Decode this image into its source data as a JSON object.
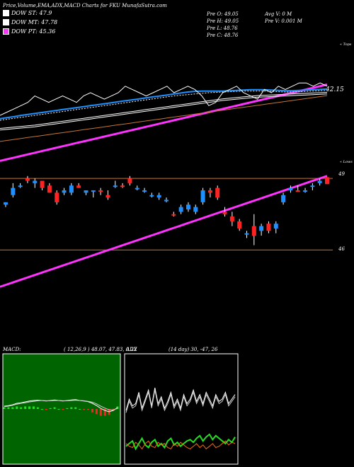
{
  "header": {
    "title": "Price,Volume,EMA,ADX,MACD Charts for FKU MunafaSutra.com",
    "pre_o": "Pre  O: 49.05",
    "pre_h": "Pre  H: 49.05",
    "pre_l": "Pre  L: 48.76",
    "pre_c": "Pre  C: 48.76",
    "avg_v": "Avg V: 0  M",
    "pre_v": "Pre  V: 0.001 M"
  },
  "legend": [
    {
      "label": "DOW ST: 47.9",
      "color": "#ffffff"
    },
    {
      "label": "DOW MT: 47.78",
      "color": "#ffffff"
    },
    {
      "label": "DOW PT: 45.36",
      "color": "#ff33ff"
    }
  ],
  "labels": {
    "tops": "« Tops",
    "lows": "« Lows",
    "ema_value": "42.15",
    "price_49": "49",
    "price_46": "46",
    "macd_title": "MACD:",
    "macd_values": "( 12,26,9 ) 48.07, 47.83,  0.22",
    "adx_title": "ADX",
    "adx_values": "(14  day) 30,  -47,  26"
  },
  "colors": {
    "up": "#1e90ff",
    "down": "#ff2222",
    "ema_short": "#1e90ff",
    "ema_long": "#c87533",
    "pt": "#ff33ff",
    "level": "#c87533",
    "adx_plus": "#22dd22",
    "adx_minus": "#ff6a00"
  },
  "chart_data": [
    {
      "type": "line",
      "title": "EMA",
      "series": [
        {
          "name": "",
          "values": [
            34,
            35,
            36,
            37,
            38,
            40,
            39,
            38,
            39,
            40,
            39,
            38,
            40,
            41,
            40,
            39,
            40,
            41,
            43,
            42,
            41,
            40,
            41,
            42,
            43,
            41,
            42,
            43,
            42,
            40,
            37,
            38,
            41,
            42,
            43,
            41,
            40,
            39,
            42,
            41,
            43,
            42,
            43,
            44,
            44,
            43,
            44,
            43
          ]
        },
        {
          "name": "",
          "values": [
            33,
            33.3,
            33.6,
            34,
            34.3,
            34.6,
            34.9,
            35.2,
            35.5,
            35.8,
            36.1,
            36.4,
            36.7,
            37,
            37.3,
            37.6,
            37.9,
            38.2,
            38.5,
            38.8,
            39.1,
            39.4,
            39.7,
            40,
            40.3,
            40.6,
            40.9,
            41.2,
            41.4,
            41.5,
            41.5,
            41.5,
            41.5,
            41.6,
            41.7,
            41.8,
            41.9,
            41.9,
            41.9,
            41.8,
            41.7,
            41.6,
            41.6,
            41.7,
            41.8,
            41.9,
            42,
            42.15
          ]
        },
        {
          "name": "",
          "values": [
            32.5,
            32.8,
            33.1,
            33.4,
            33.7,
            34,
            34.3,
            34.6,
            34.9,
            35.2,
            35.5,
            35.8,
            36.1,
            36.4,
            36.7,
            37,
            37.3,
            37.6,
            37.9,
            38.2,
            38.5,
            38.8,
            39.1,
            39.4,
            39.7,
            40,
            40.2,
            40.4,
            40.6,
            40.8,
            41,
            41.1,
            41.2,
            41.3,
            41.4,
            41.5,
            41.5,
            41.5,
            41.5,
            41.4,
            41.3,
            41.2,
            41.2,
            41.3,
            41.4,
            41.5,
            41.6,
            41.7
          ]
        },
        {
          "name": "",
          "values": [
            30,
            30.2,
            30.4,
            30.6,
            30.8,
            31,
            31.3,
            31.6,
            31.9,
            32.2,
            32.5,
            32.8,
            33.1,
            33.4,
            33.7,
            34,
            34.3,
            34.6,
            34.9,
            35.2,
            35.5,
            35.8,
            36.1,
            36.4,
            36.7,
            37,
            37.3,
            37.6,
            37.9,
            38.2,
            38.5,
            38.8,
            39.1,
            39.3,
            39.5,
            39.7,
            39.9,
            40.1,
            40.2,
            40.3,
            40.4,
            40.5,
            40.6,
            40.7,
            40.8,
            40.9,
            41,
            41.1
          ]
        },
        {
          "name": "",
          "values": [
            26,
            26.3,
            26.6,
            26.9,
            27.2,
            27.5,
            27.8,
            28.1,
            28.4,
            28.7,
            29,
            29.3,
            29.6,
            29.9,
            30.2,
            30.5,
            30.8,
            31.1,
            31.4,
            31.7,
            32,
            32.3,
            32.6,
            32.9,
            33.2,
            33.5,
            33.8,
            34.1,
            34.4,
            34.7,
            35,
            35.3,
            35.6,
            35.9,
            36.2,
            36.5,
            36.8,
            37.1,
            37.4,
            37.7,
            38,
            38.3,
            38.6,
            38.9,
            39.2,
            39.5,
            39.8,
            40.1
          ]
        },
        {
          "name": "",
          "values": [
            20,
            20.5,
            21,
            21.5,
            22,
            22.5,
            23,
            23.5,
            24,
            24.5,
            25,
            25.5,
            26,
            26.5,
            27,
            27.5,
            28,
            28.5,
            29,
            29.5,
            30,
            30.5,
            31,
            31.5,
            32,
            32.5,
            33,
            33.5,
            34,
            34.5,
            35,
            35.5,
            36,
            36.5,
            37,
            37.5,
            38,
            38.5,
            39,
            39.5,
            40,
            40.5,
            41,
            41.5,
            42,
            42.5,
            43,
            43.5
          ]
        }
      ]
    },
    {
      "type": "bar",
      "title": "Price",
      "ylim": [
        45.8,
        49.3
      ],
      "candles": [
        {
          "o": 47.9,
          "h": 48.0,
          "l": 47.8,
          "c": 48.0,
          "up": true
        },
        {
          "o": 48.3,
          "h": 48.8,
          "l": 48.2,
          "c": 48.6,
          "up": true
        },
        {
          "o": 48.7,
          "h": 48.8,
          "l": 48.6,
          "c": 48.7,
          "up": true
        },
        {
          "o": 49.0,
          "h": 49.1,
          "l": 48.8,
          "c": 48.9,
          "up": false
        },
        {
          "o": 48.8,
          "h": 49.0,
          "l": 48.6,
          "c": 48.9,
          "up": true
        },
        {
          "o": 48.9,
          "h": 48.9,
          "l": 48.5,
          "c": 48.6,
          "up": false
        },
        {
          "o": 48.7,
          "h": 48.8,
          "l": 48.4,
          "c": 48.4,
          "up": false
        },
        {
          "o": 48.4,
          "h": 48.5,
          "l": 47.9,
          "c": 48.0,
          "up": false
        },
        {
          "o": 48.4,
          "h": 48.6,
          "l": 48.3,
          "c": 48.5,
          "up": true
        },
        {
          "o": 48.4,
          "h": 48.8,
          "l": 48.3,
          "c": 48.7,
          "up": true
        },
        {
          "o": 48.7,
          "h": 48.8,
          "l": 48.6,
          "c": 48.6,
          "up": false
        },
        {
          "o": 48.4,
          "h": 48.5,
          "l": 48.3,
          "c": 48.5,
          "up": true
        },
        {
          "o": 48.5,
          "h": 48.5,
          "l": 48.2,
          "c": 48.5,
          "up": true
        },
        {
          "o": 48.5,
          "h": 48.6,
          "l": 48.3,
          "c": 48.5,
          "up": false
        },
        {
          "o": 48.3,
          "h": 48.5,
          "l": 48.1,
          "c": 48.2,
          "up": false
        },
        {
          "o": 48.7,
          "h": 48.9,
          "l": 48.6,
          "c": 48.7,
          "up": true
        },
        {
          "o": 48.7,
          "h": 48.8,
          "l": 48.6,
          "c": 48.7,
          "up": false
        },
        {
          "o": 49.0,
          "h": 49.1,
          "l": 48.7,
          "c": 48.8,
          "up": false
        },
        {
          "o": 48.6,
          "h": 48.7,
          "l": 48.5,
          "c": 48.6,
          "up": true
        },
        {
          "o": 48.5,
          "h": 48.6,
          "l": 48.4,
          "c": 48.5,
          "up": true
        },
        {
          "o": 48.3,
          "h": 48.4,
          "l": 48.2,
          "c": 48.3,
          "up": true
        },
        {
          "o": 48.3,
          "h": 48.4,
          "l": 48.1,
          "c": 48.2,
          "up": true
        },
        {
          "o": 48.1,
          "h": 48.2,
          "l": 48.0,
          "c": 48.1,
          "up": true
        },
        {
          "o": 47.5,
          "h": 47.6,
          "l": 47.4,
          "c": 47.5,
          "up": false
        },
        {
          "o": 47.6,
          "h": 47.9,
          "l": 47.5,
          "c": 47.8,
          "up": true
        },
        {
          "o": 47.7,
          "h": 48.0,
          "l": 47.6,
          "c": 47.9,
          "up": true
        },
        {
          "o": 47.6,
          "h": 47.9,
          "l": 47.5,
          "c": 47.8,
          "up": true
        },
        {
          "o": 48.0,
          "h": 48.6,
          "l": 47.9,
          "c": 48.5,
          "up": true
        },
        {
          "o": 48.5,
          "h": 48.6,
          "l": 48.2,
          "c": 48.4,
          "up": false
        },
        {
          "o": 48.6,
          "h": 48.7,
          "l": 48.1,
          "c": 48.2,
          "up": false
        },
        {
          "o": 47.6,
          "h": 47.8,
          "l": 47.4,
          "c": 47.5,
          "up": false
        },
        {
          "o": 47.4,
          "h": 47.6,
          "l": 47.0,
          "c": 47.2,
          "up": false
        },
        {
          "o": 47.2,
          "h": 47.3,
          "l": 46.8,
          "c": 46.9,
          "up": false
        },
        {
          "o": 46.7,
          "h": 46.8,
          "l": 46.5,
          "c": 46.7,
          "up": true
        },
        {
          "o": 47.0,
          "h": 47.5,
          "l": 46.2,
          "c": 46.6,
          "up": false
        },
        {
          "o": 46.8,
          "h": 47.1,
          "l": 46.6,
          "c": 47.0,
          "up": true
        },
        {
          "o": 47.1,
          "h": 47.2,
          "l": 46.7,
          "c": 46.8,
          "up": false
        },
        {
          "o": 46.9,
          "h": 47.2,
          "l": 46.7,
          "c": 47.1,
          "up": true
        },
        {
          "o": 48.0,
          "h": 48.4,
          "l": 47.9,
          "c": 48.3,
          "up": true
        },
        {
          "o": 48.5,
          "h": 48.7,
          "l": 48.4,
          "c": 48.6,
          "up": true
        },
        {
          "o": 48.5,
          "h": 48.7,
          "l": 48.5,
          "c": 48.5,
          "up": false
        },
        {
          "o": 48.5,
          "h": 48.6,
          "l": 48.4,
          "c": 48.5,
          "up": true
        },
        {
          "o": 48.7,
          "h": 48.8,
          "l": 48.5,
          "c": 48.7,
          "up": true
        },
        {
          "o": 48.8,
          "h": 49.0,
          "l": 48.7,
          "c": 48.9,
          "up": true
        },
        {
          "o": 49.05,
          "h": 49.05,
          "l": 48.76,
          "c": 48.76,
          "up": false
        }
      ]
    },
    {
      "type": "line",
      "title": "MACD",
      "series": [
        {
          "name": "",
          "values": [
            0.1,
            0.12,
            0.15,
            0.2,
            0.22,
            0.25,
            0.28,
            0.3,
            0.31,
            0.3,
            0.28,
            0.3,
            0.32,
            0.3,
            0.28,
            0.3,
            0.32,
            0.33,
            0.3,
            0.28,
            0.26,
            0.2,
            0.12,
            0.02,
            -0.05,
            -0.1,
            -0.05,
            0.05
          ]
        },
        {
          "name": "",
          "values": [
            0.08,
            0.1,
            0.13,
            0.17,
            0.2,
            0.22,
            0.25,
            0.27,
            0.29,
            0.3,
            0.29,
            0.29,
            0.3,
            0.3,
            0.29,
            0.29,
            0.3,
            0.31,
            0.3,
            0.29,
            0.27,
            0.24,
            0.18,
            0.1,
            0.03,
            -0.03,
            -0.03,
            0.02
          ]
        }
      ],
      "histogram": [
        0.02,
        0.02,
        0.02,
        0.03,
        0.02,
        0.03,
        0.03,
        0.03,
        0.02,
        0.0,
        -0.01,
        0.01,
        0.02,
        0.0,
        -0.01,
        0.01,
        0.02,
        0.02,
        0.0,
        -0.01,
        -0.01,
        -0.04,
        -0.06,
        -0.08,
        -0.08,
        -0.07,
        -0.02,
        0.03
      ]
    },
    {
      "type": "line",
      "title": "ADX",
      "series": [
        {
          "name": "",
          "values": [
            20,
            30,
            24,
            26,
            36,
            22,
            30,
            38,
            24,
            40,
            26,
            32,
            22,
            28,
            36,
            24,
            30,
            22,
            34,
            26,
            30,
            38,
            28,
            34,
            26,
            36,
            30,
            24,
            34,
            28,
            30,
            36,
            26,
            30,
            34
          ]
        },
        {
          "name": "",
          "values": [
            10,
            12,
            14,
            8,
            12,
            16,
            11,
            9,
            13,
            15,
            10,
            12,
            9,
            14,
            16,
            11,
            13,
            10,
            12,
            14,
            15,
            13,
            16,
            18,
            14,
            17,
            19,
            15,
            18,
            16,
            14,
            12,
            15,
            13,
            17
          ]
        },
        {
          "name": "",
          "values": [
            12,
            10,
            9,
            13,
            11,
            8,
            12,
            14,
            10,
            9,
            13,
            11,
            12,
            9,
            8,
            12,
            10,
            13,
            11,
            9,
            8,
            10,
            12,
            9,
            11,
            8,
            10,
            12,
            9,
            10,
            12,
            14,
            11,
            13,
            12
          ]
        }
      ]
    }
  ]
}
